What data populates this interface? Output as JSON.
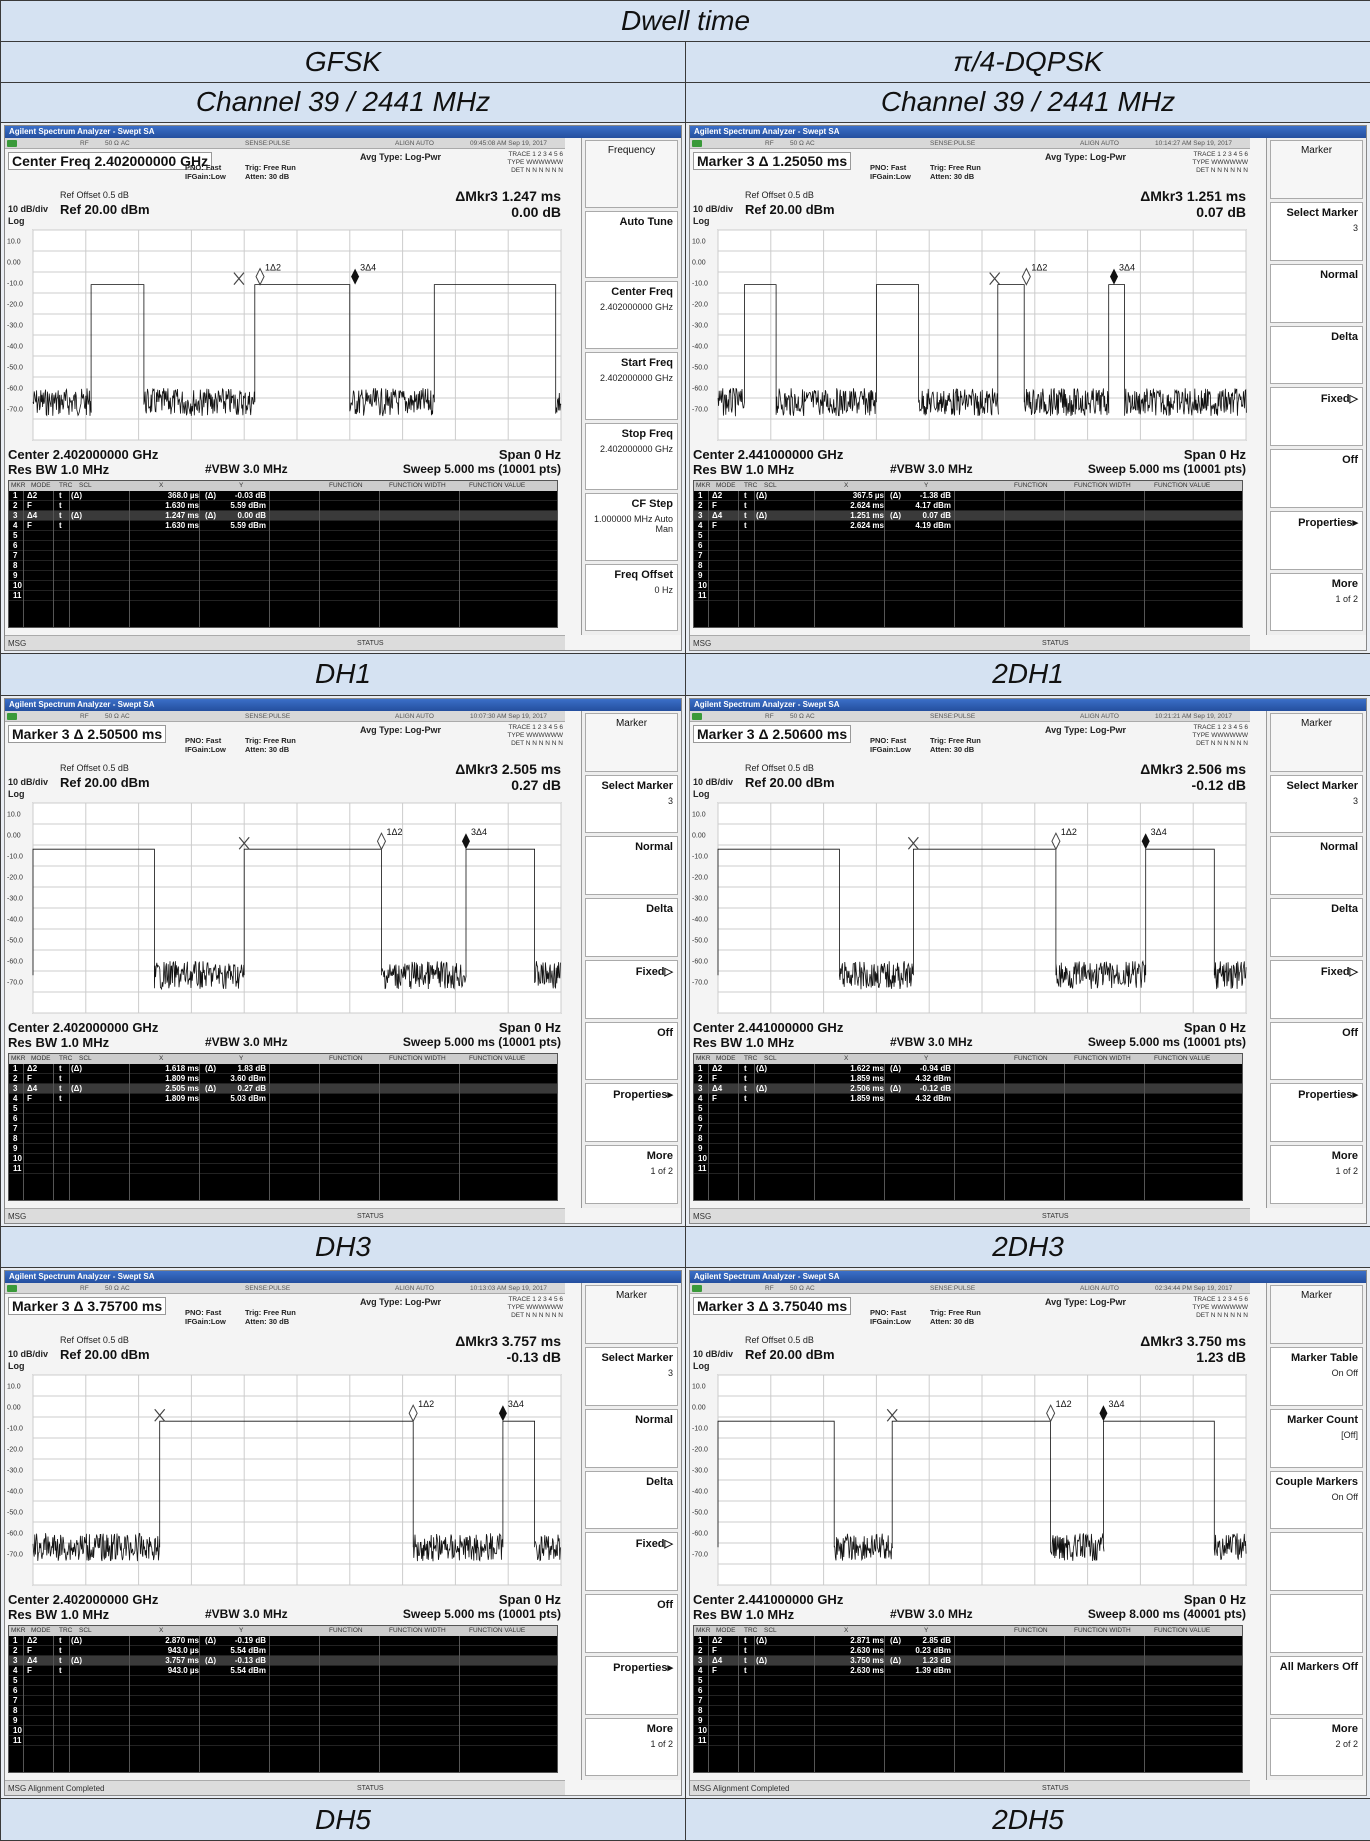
{
  "table": {
    "title": "Dwell time",
    "col1_mod": "GFSK",
    "col2_mod": "π/4-DQPSK",
    "col1_ch": "Channel 39 / 2441 MHz",
    "col2_ch": "Channel 39 / 2441 MHz",
    "labels": [
      "DH1",
      "2DH1",
      "DH3",
      "2DH3",
      "DH5",
      "2DH5"
    ]
  },
  "common": {
    "window_title": "Agilent Spectrum Analyzer - Swept SA",
    "rf": "RF",
    "ohm": "50 Ω  AC",
    "sense": "SENSE:PULSE",
    "align": "ALIGN AUTO",
    "avg_type": "Avg Type: Log-Pwr",
    "pno": "PNO: Fast",
    "ifgain": "IFGain:Low",
    "trig": "Trig: Free Run",
    "atten": "Atten: 30 dB",
    "trace": "TRACE 1 2 3 4 5 6",
    "type": "TYPE WWWWWW",
    "det": "DET N N N N N N",
    "ref_offset": "Ref Offset 0.5 dB",
    "db_div": "10 dB/div",
    "ref_level": "Ref 20.00 dBm",
    "log": "Log",
    "res_bw": "Res BW 1.0 MHz",
    "vbw": "#VBW 3.0 MHz",
    "span": "Span 0 Hz",
    "yticks": [
      "10.0",
      "0.00",
      "-10.0",
      "-20.0",
      "-30.0",
      "-40.0",
      "-50.0",
      "-60.0",
      "-70.0"
    ],
    "table_headers": [
      "MKR",
      "MODE",
      "TRC",
      "SCL",
      "X",
      "Y",
      "FUNCTION",
      "FUNCTION WIDTH",
      "FUNCTION VALUE"
    ],
    "msg": "MSG",
    "status": "STATUS"
  },
  "panels": [
    {
      "header": "Center Freq 2.402000000 GHz",
      "time": "09:45:08 AM Sep 19, 2017",
      "mkr_label": "ΔMkr3 1.247 ms",
      "mkr_value": "0.00 dB",
      "center": "Center 2.402000000 GHz",
      "sweep": "Sweep  5.000 ms (10001 pts)",
      "msg_text": "",
      "markers": [
        {
          "n": "1",
          "mode": "Δ2",
          "trc": "t",
          "scl": "(Δ)",
          "x": "368.0 µs",
          "yd": "(Δ)",
          "y": "-0.03 dB"
        },
        {
          "n": "2",
          "mode": "F",
          "trc": "t",
          "scl": "",
          "x": "1.630 ms",
          "yd": "",
          "y": "5.59 dBm"
        },
        {
          "n": "3",
          "mode": "Δ4",
          "trc": "t",
          "scl": "(Δ)",
          "x": "1.247 ms",
          "yd": "(Δ)",
          "y": "0.00 dB"
        },
        {
          "n": "4",
          "mode": "F",
          "trc": "t",
          "scl": "",
          "x": "1.630 ms",
          "yd": "",
          "y": "5.59 dBm"
        }
      ],
      "softkeys": [
        {
          "label": "Frequency",
          "sub": "",
          "title": true
        },
        {
          "label": "Auto Tune",
          "sub": ""
        },
        {
          "label": "Center Freq",
          "sub": "2.402000000 GHz"
        },
        {
          "label": "Start Freq",
          "sub": "2.402000000 GHz"
        },
        {
          "label": "Stop Freq",
          "sub": "2.402000000 GHz"
        },
        {
          "label": "CF Step",
          "sub": "1.000000 MHz  Auto  Man"
        },
        {
          "label": "Freq Offset",
          "sub": "0 Hz"
        }
      ]
    },
    {
      "header": "Marker 3 Δ 1.25050 ms",
      "time": "10:14:27 AM Sep 19, 2017",
      "mkr_label": "ΔMkr3 1.251 ms",
      "mkr_value": "0.07 dB",
      "center": "Center 2.441000000 GHz",
      "sweep": "Sweep  5.000 ms (10001 pts)",
      "msg_text": "",
      "markers": [
        {
          "n": "1",
          "mode": "Δ2",
          "trc": "t",
          "scl": "(Δ)",
          "x": "367.5 µs",
          "yd": "(Δ)",
          "y": "-1.38 dB"
        },
        {
          "n": "2",
          "mode": "F",
          "trc": "t",
          "scl": "",
          "x": "2.624 ms",
          "yd": "",
          "y": "4.17 dBm"
        },
        {
          "n": "3",
          "mode": "Δ4",
          "trc": "t",
          "scl": "(Δ)",
          "x": "1.251 ms",
          "yd": "(Δ)",
          "y": "0.07 dB"
        },
        {
          "n": "4",
          "mode": "F",
          "trc": "t",
          "scl": "",
          "x": "2.624 ms",
          "yd": "",
          "y": "4.19 dBm"
        }
      ],
      "softkeys": [
        {
          "label": "Marker",
          "sub": "",
          "title": true
        },
        {
          "label": "Select Marker",
          "sub": "3"
        },
        {
          "label": "Normal",
          "sub": ""
        },
        {
          "label": "Delta",
          "sub": ""
        },
        {
          "label": "Fixed▷",
          "sub": ""
        },
        {
          "label": "Off",
          "sub": ""
        },
        {
          "label": "Properties▸",
          "sub": ""
        },
        {
          "label": "More",
          "sub": "1 of 2"
        }
      ]
    },
    {
      "header": "Marker 3 Δ 2.50500 ms",
      "time": "10:07:30 AM Sep 19, 2017",
      "mkr_label": "ΔMkr3 2.505 ms",
      "mkr_value": "0.27 dB",
      "center": "Center 2.402000000 GHz",
      "sweep": "Sweep  5.000 ms (10001 pts)",
      "msg_text": "",
      "markers": [
        {
          "n": "1",
          "mode": "Δ2",
          "trc": "t",
          "scl": "(Δ)",
          "x": "1.618 ms",
          "yd": "(Δ)",
          "y": "1.83 dB"
        },
        {
          "n": "2",
          "mode": "F",
          "trc": "t",
          "scl": "",
          "x": "1.809 ms",
          "yd": "",
          "y": "3.60 dBm"
        },
        {
          "n": "3",
          "mode": "Δ4",
          "trc": "t",
          "scl": "(Δ)",
          "x": "2.505 ms",
          "yd": "(Δ)",
          "y": "0.27 dB"
        },
        {
          "n": "4",
          "mode": "F",
          "trc": "t",
          "scl": "",
          "x": "1.809 ms",
          "yd": "",
          "y": "5.03 dBm"
        }
      ],
      "softkeys": [
        {
          "label": "Marker",
          "sub": "",
          "title": true
        },
        {
          "label": "Select Marker",
          "sub": "3"
        },
        {
          "label": "Normal",
          "sub": ""
        },
        {
          "label": "Delta",
          "sub": ""
        },
        {
          "label": "Fixed▷",
          "sub": ""
        },
        {
          "label": "Off",
          "sub": ""
        },
        {
          "label": "Properties▸",
          "sub": ""
        },
        {
          "label": "More",
          "sub": "1 of 2"
        }
      ]
    },
    {
      "header": "Marker 3 Δ 2.50600 ms",
      "time": "10:21:21 AM Sep 19, 2017",
      "mkr_label": "ΔMkr3 2.506 ms",
      "mkr_value": "-0.12 dB",
      "center": "Center 2.441000000 GHz",
      "sweep": "Sweep  5.000 ms (10001 pts)",
      "msg_text": "",
      "markers": [
        {
          "n": "1",
          "mode": "Δ2",
          "trc": "t",
          "scl": "(Δ)",
          "x": "1.622 ms",
          "yd": "(Δ)",
          "y": "-0.94 dB"
        },
        {
          "n": "2",
          "mode": "F",
          "trc": "t",
          "scl": "",
          "x": "1.859 ms",
          "yd": "",
          "y": "4.32 dBm"
        },
        {
          "n": "3",
          "mode": "Δ4",
          "trc": "t",
          "scl": "(Δ)",
          "x": "2.506 ms",
          "yd": "(Δ)",
          "y": "-0.12 dB"
        },
        {
          "n": "4",
          "mode": "F",
          "trc": "t",
          "scl": "",
          "x": "1.859 ms",
          "yd": "",
          "y": "4.32 dBm"
        }
      ],
      "softkeys": [
        {
          "label": "Marker",
          "sub": "",
          "title": true
        },
        {
          "label": "Select Marker",
          "sub": "3"
        },
        {
          "label": "Normal",
          "sub": ""
        },
        {
          "label": "Delta",
          "sub": ""
        },
        {
          "label": "Fixed▷",
          "sub": ""
        },
        {
          "label": "Off",
          "sub": ""
        },
        {
          "label": "Properties▸",
          "sub": ""
        },
        {
          "label": "More",
          "sub": "1 of 2"
        }
      ]
    },
    {
      "header": "Marker 3 Δ 3.75700 ms",
      "time": "10:13:03 AM Sep 19, 2017",
      "mkr_label": "ΔMkr3 3.757 ms",
      "mkr_value": "-0.13 dB",
      "center": "Center 2.402000000 GHz",
      "sweep": "Sweep  5.000 ms (10001 pts)",
      "msg_text": "Alignment Completed",
      "markers": [
        {
          "n": "1",
          "mode": "Δ2",
          "trc": "t",
          "scl": "(Δ)",
          "x": "2.870 ms",
          "yd": "(Δ)",
          "y": "-0.19 dB"
        },
        {
          "n": "2",
          "mode": "F",
          "trc": "t",
          "scl": "",
          "x": "943.0 µs",
          "yd": "",
          "y": "5.54 dBm"
        },
        {
          "n": "3",
          "mode": "Δ4",
          "trc": "t",
          "scl": "(Δ)",
          "x": "3.757 ms",
          "yd": "(Δ)",
          "y": "-0.13 dB"
        },
        {
          "n": "4",
          "mode": "F",
          "trc": "t",
          "scl": "",
          "x": "943.0 µs",
          "yd": "",
          "y": "5.54 dBm"
        }
      ],
      "softkeys": [
        {
          "label": "Marker",
          "sub": "",
          "title": true
        },
        {
          "label": "Select Marker",
          "sub": "3"
        },
        {
          "label": "Normal",
          "sub": ""
        },
        {
          "label": "Delta",
          "sub": ""
        },
        {
          "label": "Fixed▷",
          "sub": ""
        },
        {
          "label": "Off",
          "sub": ""
        },
        {
          "label": "Properties▸",
          "sub": ""
        },
        {
          "label": "More",
          "sub": "1 of 2"
        }
      ]
    },
    {
      "header": "Marker 3 Δ 3.75040 ms",
      "time": "02:34:44 PM Sep 19, 2017",
      "mkr_label": "ΔMkr3 3.750 ms",
      "mkr_value": "1.23 dB",
      "center": "Center 2.441000000 GHz",
      "sweep": "Sweep  8.000 ms (40001 pts)",
      "msg_text": "Alignment Completed",
      "markers": [
        {
          "n": "1",
          "mode": "Δ2",
          "trc": "t",
          "scl": "(Δ)",
          "x": "2.871 ms",
          "yd": "(Δ)",
          "y": "2.85 dB"
        },
        {
          "n": "2",
          "mode": "F",
          "trc": "t",
          "scl": "",
          "x": "2.630 ms",
          "yd": "",
          "y": "0.23 dBm"
        },
        {
          "n": "3",
          "mode": "Δ4",
          "trc": "t",
          "scl": "(Δ)",
          "x": "3.750 ms",
          "yd": "(Δ)",
          "y": "1.23 dB"
        },
        {
          "n": "4",
          "mode": "F",
          "trc": "t",
          "scl": "",
          "x": "2.630 ms",
          "yd": "",
          "y": "1.39 dBm"
        }
      ],
      "softkeys": [
        {
          "label": "Marker",
          "sub": "",
          "title": true
        },
        {
          "label": "Marker Table",
          "sub": "On  Off"
        },
        {
          "label": "Marker Count",
          "sub": "[Off]"
        },
        {
          "label": "Couple Markers",
          "sub": "On  Off"
        },
        {
          "label": "",
          "sub": ""
        },
        {
          "label": "",
          "sub": ""
        },
        {
          "label": "All Markers Off",
          "sub": ""
        },
        {
          "label": "More",
          "sub": "2 of 2"
        }
      ]
    }
  ]
}
